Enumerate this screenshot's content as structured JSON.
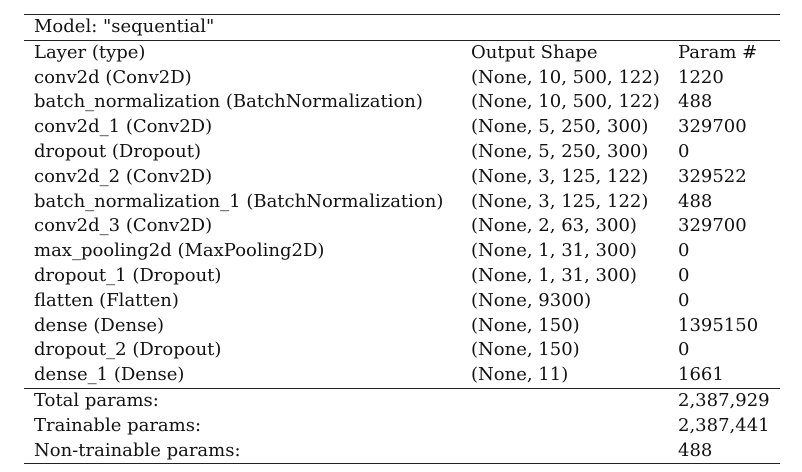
{
  "model_title": "Model: \"sequential\"",
  "header": {
    "layer": "Layer (type)",
    "output_shape": "Output Shape",
    "params": "Param #"
  },
  "layers": [
    {
      "name": "conv2d (Conv2D)",
      "shape": "(None, 10, 500, 122)",
      "params": "1220"
    },
    {
      "name": "batch_normalization (BatchNormalization)",
      "shape": "(None, 10, 500, 122)",
      "params": "488"
    },
    {
      "name": "conv2d_1 (Conv2D)",
      "shape": "(None, 5, 250, 300)",
      "params": "329700"
    },
    {
      "name": "dropout (Dropout)",
      "shape": "(None, 5, 250, 300)",
      "params": "0"
    },
    {
      "name": "conv2d_2 (Conv2D)",
      "shape": "(None, 3, 125, 122)",
      "params": "329522"
    },
    {
      "name": "batch_normalization_1 (BatchNormalization)",
      "shape": "(None, 3, 125, 122)",
      "params": "488"
    },
    {
      "name": "conv2d_3 (Conv2D)",
      "shape": "(None, 2, 63, 300)",
      "params": "329700"
    },
    {
      "name": "max_pooling2d (MaxPooling2D)",
      "shape": "(None, 1, 31, 300)",
      "params": "0"
    },
    {
      "name": "dropout_1 (Dropout)",
      "shape": "(None, 1, 31, 300)",
      "params": "0"
    },
    {
      "name": "flatten (Flatten)",
      "shape": "(None, 9300)",
      "params": "0"
    },
    {
      "name": "dense (Dense)",
      "shape": "(None, 150)",
      "params": "1395150"
    },
    {
      "name": "dropout_2 (Dropout)",
      "shape": "(None, 150)",
      "params": "0"
    },
    {
      "name": "dense_1 (Dense)",
      "shape": "(None, 11)",
      "params": "1661"
    }
  ],
  "totals": [
    {
      "label": "Total params:",
      "value": "2,387,929"
    },
    {
      "label": "Trainable params:",
      "value": "2,387,441"
    },
    {
      "label": "Non-trainable params:",
      "value": "488"
    }
  ]
}
